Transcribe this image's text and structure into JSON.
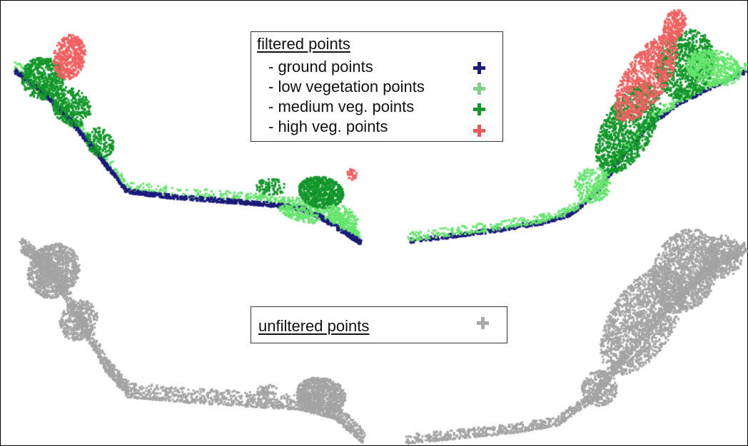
{
  "filtered_legend": {
    "title": "filtered points",
    "items": [
      {
        "label": "- ground points",
        "color": "#1c1a7a",
        "marker": "plus-icon"
      },
      {
        "label": "- low vegetation points",
        "color": "#7fcf87",
        "marker": "plus-icon"
      },
      {
        "label": "- medium veg. points",
        "color": "#18942a",
        "marker": "plus-icon"
      },
      {
        "label": "- high veg. points",
        "color": "#e85a5a",
        "marker": "plus-icon"
      }
    ]
  },
  "unfiltered_legend": {
    "title": "unfiltered points",
    "color": "#a8a8a8",
    "marker": "plus-icon"
  },
  "point_colors": {
    "ground": "#1c1a7a",
    "low_vegetation": "#66e56e",
    "medium_vegetation": "#12962a",
    "high_vegetation": "#f06060",
    "unfiltered": "#a4a4a4"
  }
}
